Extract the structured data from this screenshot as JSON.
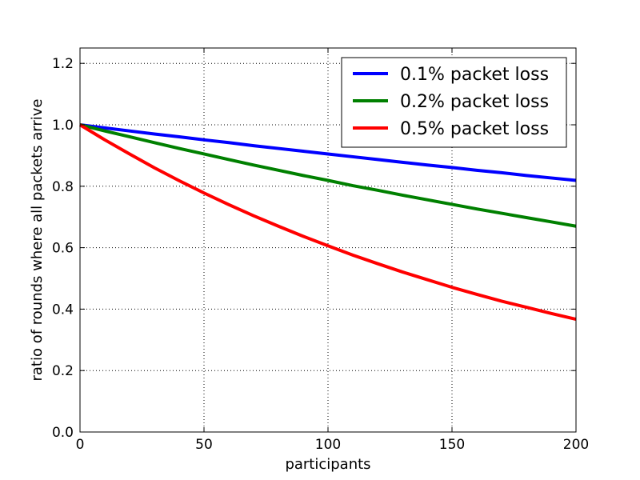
{
  "chart_data": {
    "type": "line",
    "title": "",
    "xlabel": "participants",
    "ylabel": "ratio of rounds where all packets arrive",
    "xlim": [
      0,
      200
    ],
    "ylim": [
      0.0,
      1.25
    ],
    "xticks": [
      0,
      50,
      100,
      150,
      200
    ],
    "xtick_labels": [
      "0",
      "50",
      "100",
      "150",
      "200"
    ],
    "yticks": [
      0.0,
      0.2,
      0.4,
      0.6,
      0.8,
      1.0,
      1.2
    ],
    "ytick_labels": [
      "0.0",
      "0.2",
      "0.4",
      "0.6",
      "0.8",
      "1.0",
      "1.2"
    ],
    "grid": true,
    "legend_position": "top-right",
    "x": [
      0,
      10,
      20,
      30,
      40,
      50,
      60,
      70,
      80,
      90,
      100,
      110,
      120,
      130,
      140,
      150,
      160,
      170,
      180,
      190,
      200
    ],
    "series": [
      {
        "name": "0.1% packet loss",
        "color": "#0000ff",
        "values": [
          1.0,
          0.99,
          0.98,
          0.97,
          0.961,
          0.951,
          0.942,
          0.932,
          0.923,
          0.914,
          0.905,
          0.896,
          0.887,
          0.878,
          0.869,
          0.861,
          0.852,
          0.844,
          0.835,
          0.827,
          0.819
        ]
      },
      {
        "name": "0.2% packet loss",
        "color": "#008000",
        "values": [
          1.0,
          0.98,
          0.961,
          0.942,
          0.923,
          0.905,
          0.887,
          0.869,
          0.852,
          0.835,
          0.819,
          0.802,
          0.787,
          0.771,
          0.756,
          0.741,
          0.726,
          0.712,
          0.698,
          0.684,
          0.67
        ]
      },
      {
        "name": "0.5% packet loss",
        "color": "#ff0000",
        "values": [
          1.0,
          0.951,
          0.905,
          0.86,
          0.818,
          0.778,
          0.74,
          0.704,
          0.67,
          0.637,
          0.606,
          0.576,
          0.548,
          0.521,
          0.496,
          0.471,
          0.448,
          0.426,
          0.406,
          0.386,
          0.367
        ]
      }
    ]
  }
}
